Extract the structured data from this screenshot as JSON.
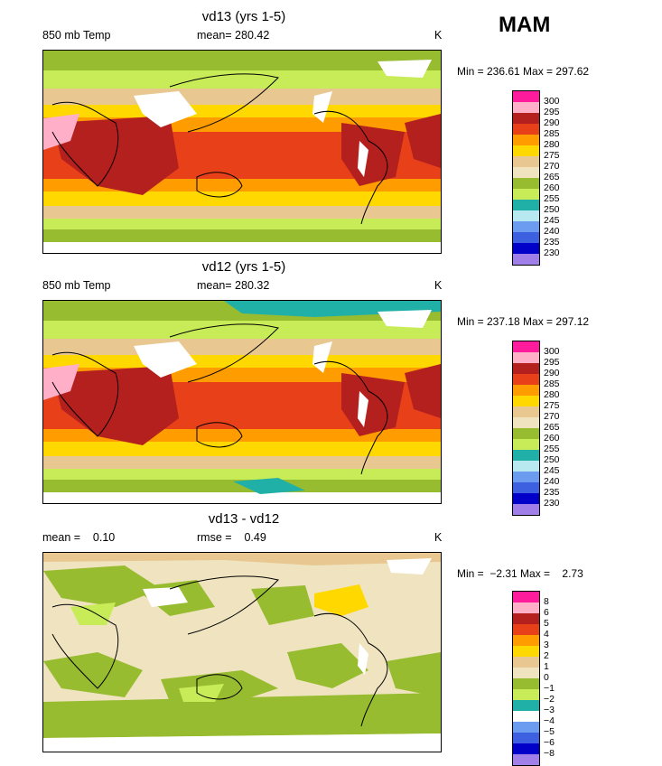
{
  "season": "MAM",
  "panels": [
    {
      "title": "vd13 (yrs 1-5)",
      "left": "850 mb Temp",
      "middle": "mean= 280.42",
      "unit": "K",
      "minmax": "Min = 236.61 Max = 297.62",
      "palette": [
        "#ff1c9c",
        "#ffb0c8",
        "#b4201e",
        "#e84018",
        "#ff9c00",
        "#ffd800",
        "#e8c890",
        "#f0e4c0",
        "#98bc30",
        "#c8ec58",
        "#20b0a8",
        "#b8e8f0",
        "#6c9cf0",
        "#3c60e0",
        "#0000c8",
        "#a080e8"
      ],
      "labels": [
        "300",
        "295",
        "290",
        "285",
        "280",
        "275",
        "270",
        "265",
        "260",
        "255",
        "250",
        "245",
        "240",
        "235",
        "230"
      ]
    },
    {
      "title": "vd12 (yrs 1-5)",
      "left": "850 mb Temp",
      "middle": "mean= 280.32",
      "unit": "K",
      "minmax": "Min = 237.18 Max = 297.12",
      "palette": [
        "#ff1c9c",
        "#ffb0c8",
        "#b4201e",
        "#e84018",
        "#ff9c00",
        "#ffd800",
        "#e8c890",
        "#f0e4c0",
        "#98bc30",
        "#c8ec58",
        "#20b0a8",
        "#b8e8f0",
        "#6c9cf0",
        "#3c60e0",
        "#0000c8",
        "#a080e8"
      ],
      "labels": [
        "300",
        "295",
        "290",
        "285",
        "280",
        "275",
        "270",
        "265",
        "260",
        "255",
        "250",
        "245",
        "240",
        "235",
        "230"
      ]
    },
    {
      "title": "vd13 - vd12",
      "left": "mean =    0.10",
      "middle": "rmse =    0.49",
      "unit": "K",
      "minmax": "Min =  −2.31 Max =    2.73",
      "palette": [
        "#ff1c9c",
        "#ffb0c8",
        "#b4201e",
        "#e84018",
        "#ff9c00",
        "#ffd800",
        "#e8c890",
        "#f0e4c0",
        "#98bc30",
        "#c8ec58",
        "#20b0a8",
        "#ffffff",
        "#6c9cf0",
        "#3c60e0",
        "#0000c8",
        "#a080e8"
      ],
      "labels": [
        "8",
        "6",
        "5",
        "4",
        "3",
        "2",
        "1",
        "0",
        "−1",
        "−2",
        "−3",
        "−4",
        "−5",
        "−6",
        "−8"
      ]
    }
  ]
}
